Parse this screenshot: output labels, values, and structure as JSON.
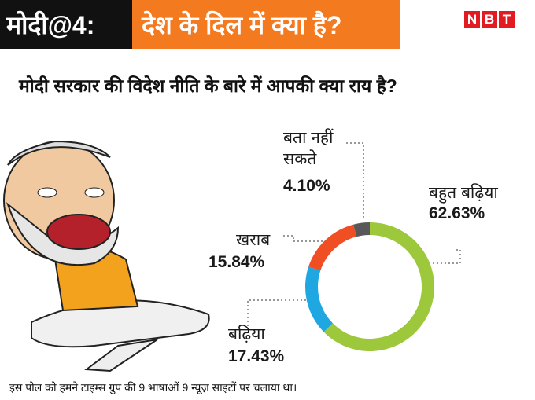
{
  "header": {
    "badge": "मोदी@4:",
    "headline": "देश के दिल में क्या है?",
    "logo": [
      "N",
      "B",
      "T"
    ]
  },
  "chart_data": {
    "type": "donut",
    "title": "मोदी सरकार की विदेश नीति के बारे में आपकी क्या राय है?",
    "categories": [
      "बहुत बढ़िया",
      "बढ़िया",
      "खराब",
      "बता नहीं सकते"
    ],
    "values": [
      62.63,
      17.43,
      15.84,
      4.1
    ],
    "value_labels": [
      "62.63%",
      "17.43%",
      "15.84%",
      "4.10%"
    ],
    "colors": [
      "#9dc83c",
      "#1ea7e1",
      "#f04f24",
      "#58585a"
    ]
  },
  "footer": "इस पोल को हमने टाइम्स ग्रुप की 9 भाषाओं 9 न्यूज़ साइटों पर चलाया था।"
}
